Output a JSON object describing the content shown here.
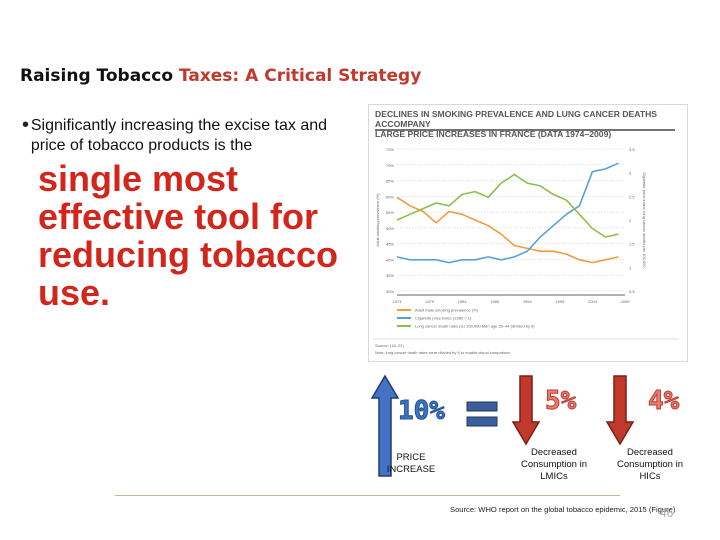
{
  "slide": {
    "title_main": "Raising Tobacco ",
    "title_accent": "Taxes: A Critical Strategy",
    "bullet_text": "Significantly increasing the excise tax and price of tobacco products is the",
    "emphasis_text": "single most effective tool for reducing tobacco use.",
    "bullet_glyph": "•"
  },
  "figure": {
    "title_line1": "DECLINES IN SMOKING PREVALENCE AND LUNG CANCER DEATHS ACCOMPANY",
    "title_line2": "LARGE PRICE INCREASES IN FRANCE (DATA 1974–2009)",
    "source": "Source: (19–22)",
    "note": "Note: lung cancer death rates were divided by 6 to enable visual comparison",
    "chart_data": {
      "type": "line",
      "x": [
        1974,
        1976,
        1978,
        1980,
        1982,
        1984,
        1986,
        1988,
        1990,
        1992,
        1994,
        1996,
        1998,
        2000,
        2002,
        2004,
        2006,
        2008
      ],
      "x_ticks": [
        "1974",
        "1979",
        "1984",
        "1989",
        "1994",
        "1999",
        "2004",
        "2009"
      ],
      "y_left_ticks": [
        "75%",
        "70%",
        "65%",
        "60%",
        "55%",
        "50%",
        "45%",
        "40%",
        "35%",
        "30%"
      ],
      "y_right_ticks": [
        "3.5",
        "3",
        "2.5",
        "2",
        "1.5",
        "1",
        "0.5"
      ],
      "ylabel_left": "Adult smoking prevalence (%)",
      "ylabel_right": "Cigarette price index; lung cancer deaths per 100,000",
      "ylim_left": [
        25,
        75
      ],
      "series": [
        {
          "name": "Adult male smoking prevalence (%)",
          "color": "#f29b3c",
          "values": [
            58,
            55,
            53,
            49,
            53,
            52,
            50,
            48,
            45,
            41,
            40,
            39,
            39,
            38,
            36,
            35,
            36,
            37
          ]
        },
        {
          "name": "Cigarette price index (1980 = 1)",
          "color": "#5aa0d8",
          "values": [
            37,
            36,
            36,
            36,
            35,
            36,
            36,
            37,
            36,
            37,
            39,
            44,
            48,
            52,
            55,
            67,
            68,
            70
          ]
        },
        {
          "name": "Lung cancer death rates per 100,000 Men age 35–44 (divided by 6)",
          "color": "#8dbf4a",
          "values": [
            50,
            52,
            54,
            56,
            55,
            59,
            60,
            58,
            63,
            66,
            63,
            62,
            59,
            57,
            52,
            47,
            44,
            45
          ]
        }
      ]
    }
  },
  "infographic": {
    "price_pct": "10%",
    "price_caption": "PRICE INCREASE",
    "lmic_pct": "5%",
    "lmic_caption": "Decreased Consumption in LMICs",
    "hic_pct": "4%",
    "hic_caption": "Decreased Consumption in HICs",
    "colors": {
      "blue": "#4472c4",
      "red": "#c0392b",
      "equals_blue": "#3b5f9a"
    }
  },
  "footer": {
    "source": "Source: WHO report on the global tobacco epidemic, 2015 (Figure)",
    "page_number": "46"
  }
}
